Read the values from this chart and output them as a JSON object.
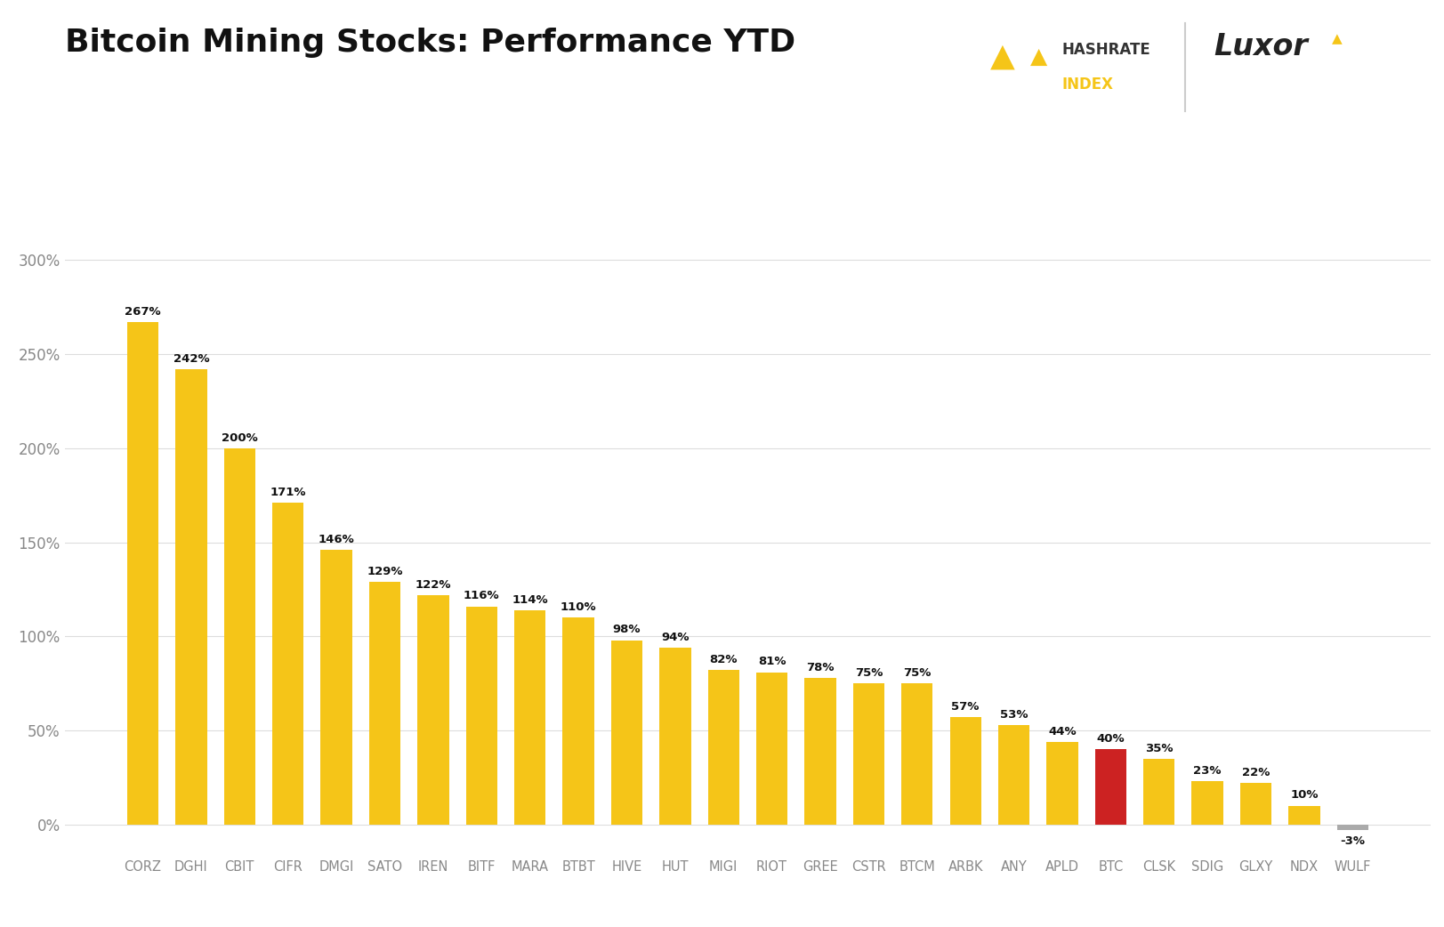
{
  "title": "Bitcoin Mining Stocks: Performance YTD",
  "categories": [
    "CORZ",
    "DGHI",
    "CBIT",
    "CIFR",
    "DMGI",
    "SATO",
    "IREN",
    "BITF",
    "MARA",
    "BTBT",
    "HIVE",
    "HUT",
    "MIGI",
    "RIOT",
    "GREE",
    "CSTR",
    "BTCM",
    "ARBK",
    "ANY",
    "APLD",
    "BTC",
    "CLSK",
    "SDIG",
    "GLXY",
    "NDX",
    "WULF"
  ],
  "values": [
    267,
    242,
    200,
    171,
    146,
    129,
    122,
    116,
    114,
    110,
    98,
    94,
    82,
    81,
    78,
    75,
    75,
    57,
    53,
    44,
    40,
    35,
    23,
    22,
    10,
    -3
  ],
  "bar_colors": [
    "#F5C518",
    "#F5C518",
    "#F5C518",
    "#F5C518",
    "#F5C518",
    "#F5C518",
    "#F5C518",
    "#F5C518",
    "#F5C518",
    "#F5C518",
    "#F5C518",
    "#F5C518",
    "#F5C518",
    "#F5C518",
    "#F5C518",
    "#F5C518",
    "#F5C518",
    "#F5C518",
    "#F5C518",
    "#F5C518",
    "#CC2222",
    "#F5C518",
    "#F5C518",
    "#F5C518",
    "#F5C518",
    "#AAAAAA"
  ],
  "background_color": "#FFFFFF",
  "title_fontsize": 26,
  "ytick_labels": [
    "0%",
    "50%",
    "100%",
    "150%",
    "200%",
    "250%",
    "300%"
  ],
  "ytick_values": [
    0,
    50,
    100,
    150,
    200,
    250,
    300
  ],
  "ylim": [
    -15,
    320
  ],
  "label_fontsize": 10,
  "axis_label_color": "#888888",
  "text_color": "#111111",
  "hashrate_color": "#F5C518",
  "luxor_color": "#222222"
}
